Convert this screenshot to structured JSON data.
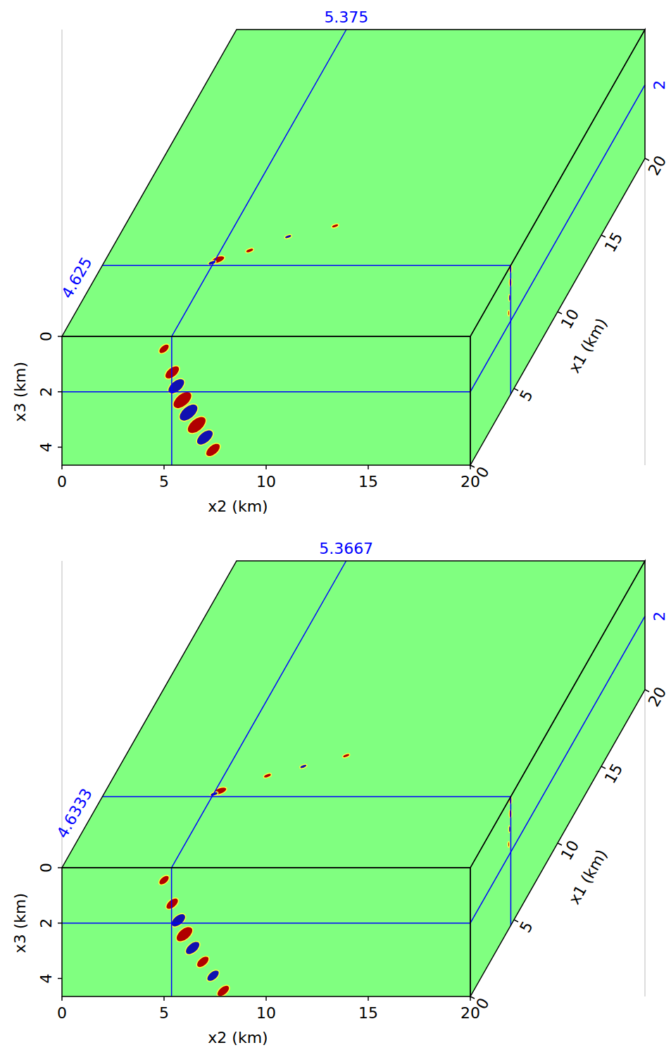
{
  "chart_data": [
    {
      "type": "cube",
      "x_label": "x2 (km)",
      "xlim": [
        0,
        20
      ],
      "xticks": [
        0,
        5,
        10,
        15,
        20
      ],
      "y_label": "x3 (km)",
      "ylim": [
        0,
        4.65
      ],
      "yticks": [
        0,
        2,
        4
      ],
      "z_label": "x1 (km)",
      "zlim": [
        0,
        20
      ],
      "zticks": [
        0,
        5,
        10,
        15,
        20
      ],
      "slices": {
        "x1": 4.625,
        "x2": 5.375,
        "x3": 2
      },
      "colors": [
        "#1010b0",
        "#80ff80",
        "#b00000"
      ],
      "front": [
        {
          "x2": 5.0,
          "x3": 0.45,
          "amplitude": 1,
          "radius": 0.25
        },
        {
          "x2": 5.4,
          "x3": 1.3,
          "amplitude": 1,
          "radius": 0.35
        },
        {
          "x2": 5.6,
          "x3": 1.8,
          "amplitude": -1,
          "radius": 0.4
        },
        {
          "x2": 5.9,
          "x3": 2.3,
          "amplitude": 1,
          "radius": 0.45
        },
        {
          "x2": 6.2,
          "x3": 2.75,
          "amplitude": -1,
          "radius": 0.45
        },
        {
          "x2": 6.6,
          "x3": 3.2,
          "amplitude": 1,
          "radius": 0.45
        },
        {
          "x2": 7.0,
          "x3": 3.65,
          "amplitude": -1,
          "radius": 0.4
        },
        {
          "x2": 7.4,
          "x3": 4.1,
          "amplitude": 1,
          "radius": 0.35
        }
      ],
      "top": [
        {
          "x2": 5.5,
          "x1": 5.0,
          "amplitude": 1,
          "radius": 0.35
        },
        {
          "x2": 5.3,
          "x1": 4.8,
          "amplitude": -1,
          "radius": 0.2
        },
        {
          "x2": 6.8,
          "x1": 5.6,
          "amplitude": 1,
          "radius": 0.2
        },
        {
          "x2": 8.3,
          "x1": 6.5,
          "amplitude": -1,
          "radius": 0.18
        },
        {
          "x2": 10.3,
          "x1": 7.2,
          "amplitude": 1,
          "radius": 0.18
        }
      ],
      "side": [
        {
          "x1": 4.6,
          "x3": 0.1,
          "amplitude": 1,
          "radius": 0.15
        },
        {
          "x1": 4.6,
          "x3": 0.6,
          "amplitude": 1,
          "radius": 0.15
        },
        {
          "x1": 4.5,
          "x3": 1.1,
          "amplitude": -1,
          "radius": 0.12
        },
        {
          "x1": 4.4,
          "x3": 1.6,
          "amplitude": 1,
          "radius": 0.1
        }
      ]
    },
    {
      "type": "cube",
      "x_label": "x2 (km)",
      "xlim": [
        0,
        20
      ],
      "xticks": [
        0,
        5,
        10,
        15,
        20
      ],
      "y_label": "x3 (km)",
      "ylim": [
        0,
        4.65
      ],
      "yticks": [
        0,
        2,
        4
      ],
      "z_label": "x1 (km)",
      "zlim": [
        0,
        20
      ],
      "zticks": [
        0,
        5,
        10,
        15,
        20
      ],
      "slices": {
        "x1": 4.6333,
        "x2": 5.3667,
        "x3": 2
      },
      "colors": [
        "#1010b0",
        "#80ff80",
        "#b00000"
      ],
      "front": [
        {
          "x2": 5.0,
          "x3": 0.45,
          "amplitude": 1,
          "radius": 0.25
        },
        {
          "x2": 5.4,
          "x3": 1.3,
          "amplitude": 1,
          "radius": 0.3
        },
        {
          "x2": 5.7,
          "x3": 1.9,
          "amplitude": -1,
          "radius": 0.35
        },
        {
          "x2": 6.0,
          "x3": 2.4,
          "amplitude": 1,
          "radius": 0.4
        },
        {
          "x2": 6.4,
          "x3": 2.9,
          "amplitude": -1,
          "radius": 0.35
        },
        {
          "x2": 6.9,
          "x3": 3.4,
          "amplitude": 1,
          "radius": 0.3
        },
        {
          "x2": 7.4,
          "x3": 3.9,
          "amplitude": -1,
          "radius": 0.3
        },
        {
          "x2": 7.9,
          "x3": 4.45,
          "amplitude": 1,
          "radius": 0.3
        }
      ],
      "top": [
        {
          "x2": 5.6,
          "x1": 5.0,
          "amplitude": 1,
          "radius": 0.35
        },
        {
          "x2": 5.4,
          "x1": 4.8,
          "amplitude": -1,
          "radius": 0.2
        },
        {
          "x2": 7.5,
          "x1": 6.0,
          "amplitude": 1,
          "radius": 0.2
        },
        {
          "x2": 9.0,
          "x1": 6.6,
          "amplitude": -1,
          "radius": 0.18
        },
        {
          "x2": 10.8,
          "x1": 7.3,
          "amplitude": 1,
          "radius": 0.18
        }
      ],
      "side": [
        {
          "x1": 4.6,
          "x3": 0.1,
          "amplitude": 1,
          "radius": 0.15
        },
        {
          "x1": 4.6,
          "x3": 0.6,
          "amplitude": 1,
          "radius": 0.15
        },
        {
          "x1": 4.5,
          "x3": 1.1,
          "amplitude": -1,
          "radius": 0.12
        },
        {
          "x1": 4.4,
          "x3": 1.6,
          "amplitude": 1,
          "radius": 0.1
        }
      ]
    }
  ]
}
